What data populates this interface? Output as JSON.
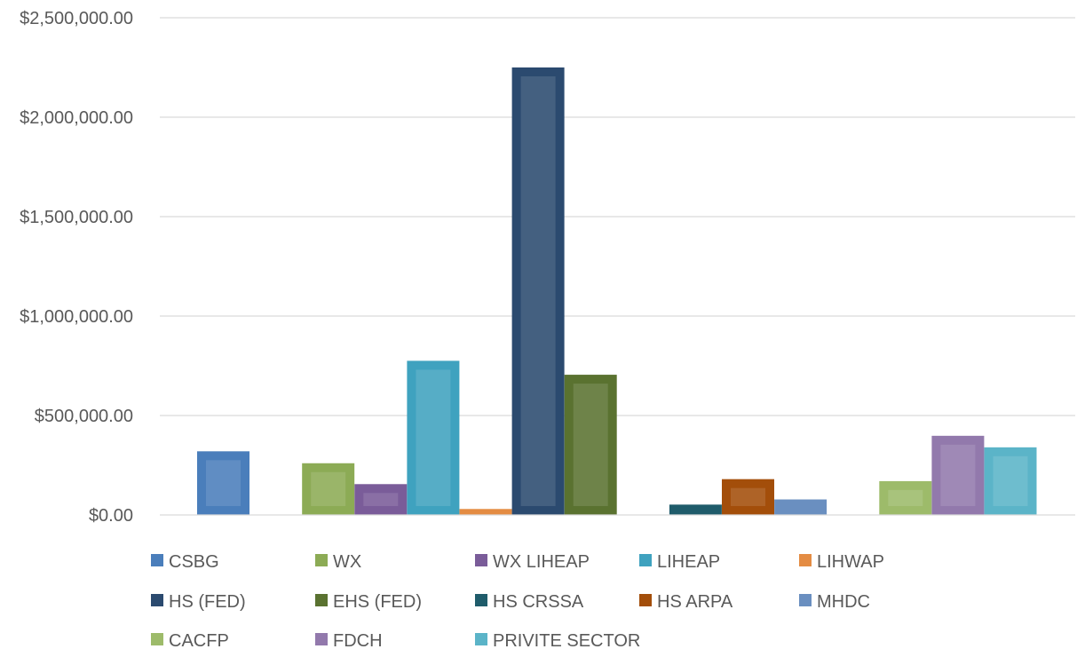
{
  "chart_data": {
    "type": "bar",
    "title": "",
    "xlabel": "",
    "ylabel": "",
    "ylim": [
      0,
      2500000
    ],
    "y_ticks": [
      {
        "value": 0,
        "label": "$0.00"
      },
      {
        "value": 500000,
        "label": "$500,000.00"
      },
      {
        "value": 1000000,
        "label": "$1,000,000.00"
      },
      {
        "value": 1500000,
        "label": "$1,500,000.00"
      },
      {
        "value": 2000000,
        "label": "$2,000,000.00"
      },
      {
        "value": 2500000,
        "label": "$2,500,000.00"
      }
    ],
    "grid": true,
    "legend_position": "bottom",
    "series": [
      {
        "name": "CSBG",
        "value": 320000,
        "color": "#4a7ebb"
      },
      {
        "name": "WX",
        "value": 260000,
        "color": "#8cab55"
      },
      {
        "name": "WX LIHEAP",
        "value": 155000,
        "color": "#7a5c99"
      },
      {
        "name": "LIHEAP",
        "value": 775000,
        "color": "#3fa2bf"
      },
      {
        "name": "LIHWAP",
        "value": 30000,
        "color": "#e48c43"
      },
      {
        "name": "HS (FED)",
        "value": 2250000,
        "color": "#2b4a6f"
      },
      {
        "name": "EHS (FED)",
        "value": 705000,
        "color": "#5a7230"
      },
      {
        "name": "HS CRSSA",
        "value": 52000,
        "color": "#1f5c6b"
      },
      {
        "name": "HS ARPA",
        "value": 180000,
        "color": "#a34e0a"
      },
      {
        "name": "MHDC",
        "value": 78000,
        "color": "#6a8fc0"
      },
      {
        "name": "CACFP",
        "value": 170000,
        "color": "#9dbb6a"
      },
      {
        "name": "FDCH",
        "value": 398000,
        "color": "#9279ac"
      },
      {
        "name": "PRIVITE SECTOR",
        "value": 340000,
        "color": "#5bb4c8"
      }
    ]
  }
}
